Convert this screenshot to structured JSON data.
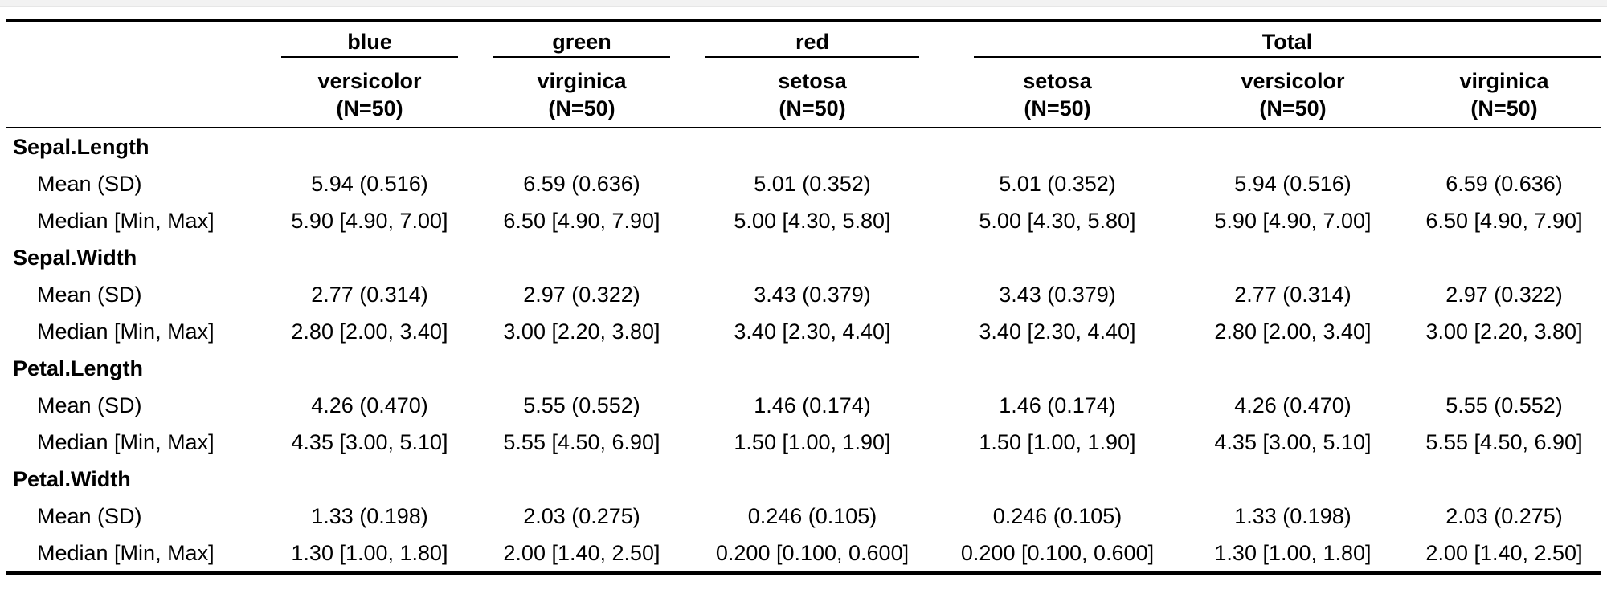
{
  "header": {
    "groups": [
      {
        "label": "blue",
        "span": 1
      },
      {
        "label": "green",
        "span": 1
      },
      {
        "label": "red",
        "span": 1
      },
      {
        "label": "Total",
        "span": 3
      }
    ],
    "columns": [
      {
        "name": "versicolor",
        "n": "(N=50)"
      },
      {
        "name": "virginica",
        "n": "(N=50)"
      },
      {
        "name": "setosa",
        "n": "(N=50)"
      },
      {
        "name": "setosa",
        "n": "(N=50)"
      },
      {
        "name": "versicolor",
        "n": "(N=50)"
      },
      {
        "name": "virginica",
        "n": "(N=50)"
      }
    ]
  },
  "variables": [
    {
      "name": "Sepal.Length",
      "stats": [
        {
          "label": "Mean (SD)",
          "values": [
            "5.94 (0.516)",
            "6.59 (0.636)",
            "5.01 (0.352)",
            "5.01 (0.352)",
            "5.94 (0.516)",
            "6.59 (0.636)"
          ]
        },
        {
          "label": "Median [Min, Max]",
          "values": [
            "5.90 [4.90, 7.00]",
            "6.50 [4.90, 7.90]",
            "5.00 [4.30, 5.80]",
            "5.00 [4.30, 5.80]",
            "5.90 [4.90, 7.00]",
            "6.50 [4.90, 7.90]"
          ]
        }
      ]
    },
    {
      "name": "Sepal.Width",
      "stats": [
        {
          "label": "Mean (SD)",
          "values": [
            "2.77 (0.314)",
            "2.97 (0.322)",
            "3.43 (0.379)",
            "3.43 (0.379)",
            "2.77 (0.314)",
            "2.97 (0.322)"
          ]
        },
        {
          "label": "Median [Min, Max]",
          "values": [
            "2.80 [2.00, 3.40]",
            "3.00 [2.20, 3.80]",
            "3.40 [2.30, 4.40]",
            "3.40 [2.30, 4.40]",
            "2.80 [2.00, 3.40]",
            "3.00 [2.20, 3.80]"
          ]
        }
      ]
    },
    {
      "name": "Petal.Length",
      "stats": [
        {
          "label": "Mean (SD)",
          "values": [
            "4.26 (0.470)",
            "5.55 (0.552)",
            "1.46 (0.174)",
            "1.46 (0.174)",
            "4.26 (0.470)",
            "5.55 (0.552)"
          ]
        },
        {
          "label": "Median [Min, Max]",
          "values": [
            "4.35 [3.00, 5.10]",
            "5.55 [4.50, 6.90]",
            "1.50 [1.00, 1.90]",
            "1.50 [1.00, 1.90]",
            "4.35 [3.00, 5.10]",
            "5.55 [4.50, 6.90]"
          ]
        }
      ]
    },
    {
      "name": "Petal.Width",
      "stats": [
        {
          "label": "Mean (SD)",
          "values": [
            "1.33 (0.198)",
            "2.03 (0.275)",
            "0.246 (0.105)",
            "0.246 (0.105)",
            "1.33 (0.198)",
            "2.03 (0.275)"
          ]
        },
        {
          "label": "Median [Min, Max]",
          "values": [
            "1.30 [1.00, 1.80]",
            "2.00 [1.40, 2.50]",
            "0.200 [0.100, 0.600]",
            "0.200 [0.100, 0.600]",
            "1.30 [1.00, 1.80]",
            "2.00 [1.40, 2.50]"
          ]
        }
      ]
    }
  ]
}
